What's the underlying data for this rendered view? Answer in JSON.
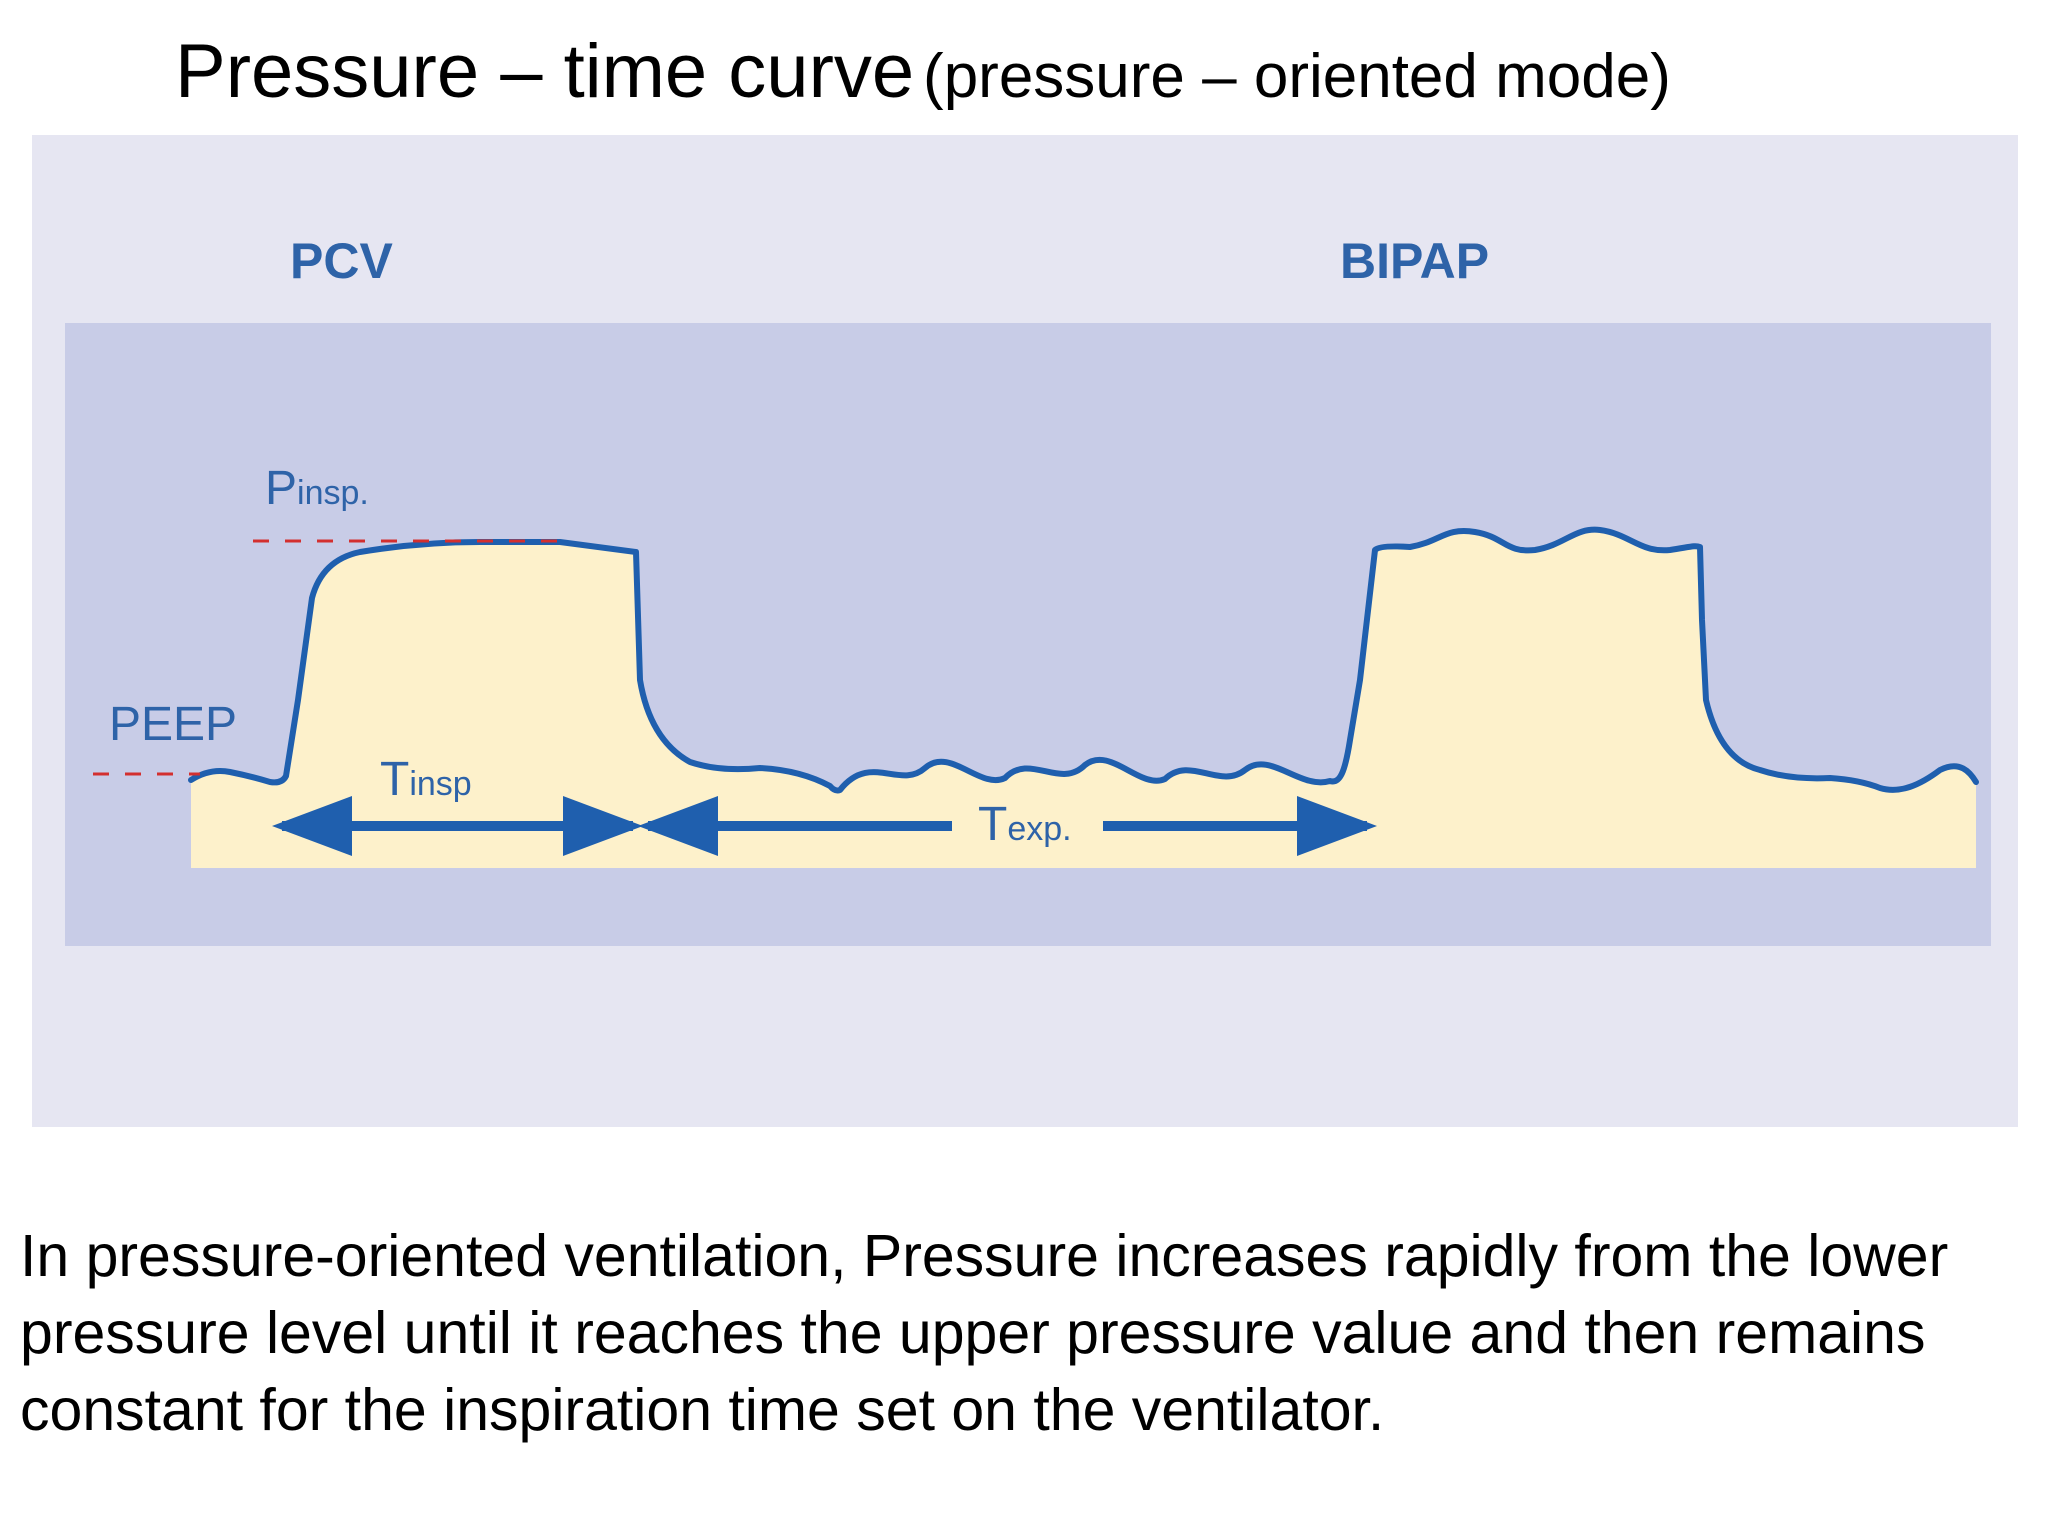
{
  "title": {
    "main": "Pressure – time curve",
    "sub": "(pressure – oriented mode)"
  },
  "diagram": {
    "modes": {
      "left": "PCV",
      "right": "BIPAP"
    },
    "levels": {
      "upper": {
        "main": "P",
        "sub": "insp."
      },
      "lower": "PEEP"
    },
    "times": {
      "inspiration": {
        "main": "T",
        "sub": "insp"
      },
      "expiration": {
        "main": "T",
        "sub": "exp."
      }
    },
    "colors": {
      "panel_background": "#e6e6f2",
      "plot_background": "#c8cce7",
      "area_fill": "#fdf1cb",
      "curve": "#1f5fae",
      "level_marker": "#d32f2f",
      "label_text": "#2e63a8"
    }
  },
  "caption": "In pressure-oriented ventilation, Pressure increases rapidly from the lower pressure level until it reaches the upper pressure value and then remains constant for the inspiration time set on the ventilator."
}
